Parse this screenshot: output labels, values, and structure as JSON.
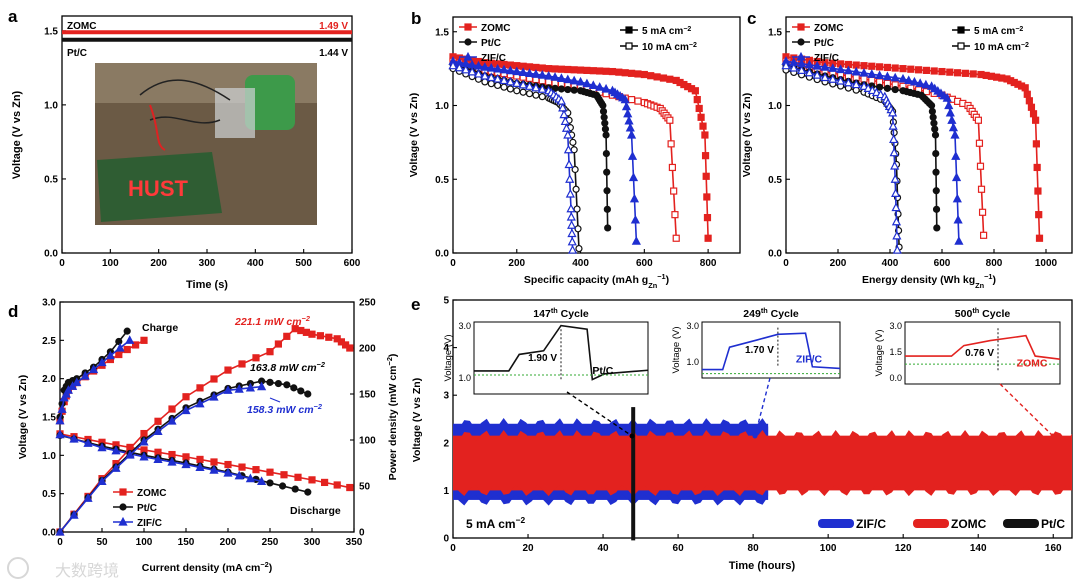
{
  "colors": {
    "zomc": "#e3221f",
    "ptc": "#111111",
    "zifc": "#1f2fd0",
    "grid": "#888888",
    "photo_bg": "#6b5a45",
    "board": "#2f5d33",
    "led": "#ff3a3a"
  },
  "watermark": "大数跨境",
  "panels": {
    "a": "a",
    "b": "b",
    "c": "c",
    "d": "d",
    "e": "e"
  },
  "chart_data": [
    {
      "panel": "a",
      "type": "line",
      "xlabel": "Time (s)",
      "ylabel": "Voltage (V vs Zn)",
      "xlim": [
        0,
        600
      ],
      "ylim": [
        0,
        1.6
      ],
      "xticks": [
        "0",
        "100",
        "200",
        "300",
        "400",
        "500",
        "600"
      ],
      "yticks": [
        "0.0",
        "0.5",
        "1.0",
        "1.5"
      ],
      "series": [
        {
          "name": "ZOMC",
          "label": "1.49 V",
          "value": 1.49
        },
        {
          "name": "Pt/C",
          "label": "1.44 V",
          "value": 1.44
        }
      ],
      "photo_text": "HUST"
    },
    {
      "panel": "b",
      "type": "line",
      "xlabel": "Specific capacity (mAh g",
      "xlabel_sub": "Zn",
      "xlabel_sup": "−1",
      "xlabel_end": ")",
      "ylabel": "Voltage (V vs Zn)",
      "xlim": [
        0,
        900
      ],
      "ylim": [
        0,
        1.6
      ],
      "xticks": [
        "0",
        "200",
        "400",
        "600",
        "800"
      ],
      "yticks": [
        "0.0",
        "0.5",
        "1.0",
        "1.5"
      ],
      "legend": [
        "ZOMC",
        "Pt/C",
        "ZIF/C"
      ],
      "rate_legend": [
        "5 mA cm",
        "10 mA cm"
      ],
      "rate_sup": "−2",
      "series": [
        {
          "name": "ZOMC",
          "rate": "5",
          "x": [
            0,
            100,
            200,
            300,
            400,
            500,
            600,
            700,
            760,
            790,
            800
          ],
          "y": [
            1.33,
            1.29,
            1.27,
            1.25,
            1.24,
            1.23,
            1.21,
            1.17,
            1.1,
            0.8,
            0.1
          ]
        },
        {
          "name": "ZOMC",
          "rate": "10",
          "x": [
            0,
            100,
            200,
            300,
            400,
            500,
            600,
            650,
            680,
            700
          ],
          "y": [
            1.3,
            1.24,
            1.2,
            1.16,
            1.12,
            1.07,
            1.02,
            0.98,
            0.9,
            0.1
          ]
        },
        {
          "name": "Pt/C",
          "rate": "5",
          "x": [
            0,
            100,
            200,
            300,
            400,
            450,
            470,
            480,
            485
          ],
          "y": [
            1.28,
            1.2,
            1.15,
            1.12,
            1.1,
            1.07,
            1.0,
            0.8,
            0.17
          ]
        },
        {
          "name": "Pt/C",
          "rate": "10",
          "x": [
            0,
            100,
            200,
            300,
            330,
            360,
            380,
            395
          ],
          "y": [
            1.25,
            1.16,
            1.1,
            1.05,
            1.02,
            0.95,
            0.7,
            0.03
          ]
        },
        {
          "name": "ZIF/C",
          "rate": "5",
          "x": [
            0,
            100,
            200,
            300,
            400,
            500,
            540,
            560,
            575
          ],
          "y": [
            1.3,
            1.26,
            1.23,
            1.2,
            1.16,
            1.1,
            1.04,
            0.8,
            0.08
          ]
        },
        {
          "name": "ZIF/C",
          "rate": "10",
          "x": [
            0,
            100,
            200,
            300,
            340,
            360,
            370,
            375
          ],
          "y": [
            1.27,
            1.2,
            1.15,
            1.1,
            1.03,
            0.8,
            0.3,
            0.02
          ]
        }
      ]
    },
    {
      "panel": "c",
      "type": "line",
      "xlabel": "Energy density (Wh kg",
      "xlabel_sub": "Zn",
      "xlabel_sup": "−1",
      "xlabel_end": ")",
      "ylabel": "Voltage (V vs Zn)",
      "xlim": [
        0,
        1100
      ],
      "ylim": [
        0,
        1.6
      ],
      "xticks": [
        "0",
        "200",
        "400",
        "600",
        "800",
        "1000"
      ],
      "yticks": [
        "0.0",
        "0.5",
        "1.0",
        "1.5"
      ],
      "legend": [
        "ZOMC",
        "Pt/C",
        "ZIF/C"
      ],
      "rate_legend": [
        "5 mA cm",
        "10 mA cm"
      ],
      "rate_sup": "−2",
      "series": [
        {
          "name": "ZOMC",
          "rate": "5",
          "x": [
            0,
            150,
            300,
            450,
            600,
            750,
            850,
            920,
            960,
            975
          ],
          "y": [
            1.33,
            1.29,
            1.27,
            1.25,
            1.23,
            1.21,
            1.18,
            1.12,
            0.9,
            0.1
          ]
        },
        {
          "name": "ZOMC",
          "rate": "10",
          "x": [
            0,
            150,
            300,
            450,
            600,
            700,
            740,
            760
          ],
          "y": [
            1.3,
            1.23,
            1.18,
            1.13,
            1.07,
            1.0,
            0.9,
            0.12
          ]
        },
        {
          "name": "Pt/C",
          "rate": "5",
          "x": [
            0,
            150,
            300,
            450,
            520,
            560,
            575,
            580
          ],
          "y": [
            1.27,
            1.2,
            1.14,
            1.1,
            1.07,
            1.0,
            0.8,
            0.17
          ]
        },
        {
          "name": "Pt/C",
          "rate": "10",
          "x": [
            0,
            150,
            300,
            380,
            410,
            425,
            435
          ],
          "y": [
            1.24,
            1.16,
            1.09,
            1.03,
            0.96,
            0.6,
            0.04
          ]
        },
        {
          "name": "ZIF/C",
          "rate": "5",
          "x": [
            0,
            150,
            300,
            450,
            560,
            620,
            650,
            665
          ],
          "y": [
            1.3,
            1.26,
            1.22,
            1.18,
            1.13,
            1.05,
            0.8,
            0.08
          ]
        },
        {
          "name": "ZIF/C",
          "rate": "10",
          "x": [
            0,
            150,
            300,
            380,
            410,
            420,
            428
          ],
          "y": [
            1.27,
            1.19,
            1.13,
            1.06,
            0.95,
            0.5,
            0.02
          ]
        }
      ]
    },
    {
      "panel": "d",
      "type": "line",
      "xlabel": "Current density (mA cm",
      "xlabel_sup": "−2",
      "xlabel_end": ")",
      "ylabel": "Voltage (V vs Zn)",
      "y2label": "Power density (mW cm",
      "y2label_sup": "−2",
      "y2label_end": ")",
      "xlim": [
        0,
        350
      ],
      "ylim": [
        0,
        3.0
      ],
      "y2lim": [
        0,
        250
      ],
      "xticks": [
        "0",
        "50",
        "100",
        "150",
        "200",
        "250",
        "300",
        "350"
      ],
      "yticks": [
        "0.0",
        "0.5",
        "1.0",
        "1.5",
        "2.0",
        "2.5",
        "3.0"
      ],
      "y2ticks": [
        "0",
        "50",
        "100",
        "150",
        "200",
        "250"
      ],
      "legend": [
        "ZOMC",
        "Pt/C",
        "ZIF/C"
      ],
      "labels": {
        "charge": "Charge",
        "discharge": "Discharge",
        "zomc_peak": "221.1 mW cm",
        "ptc_peak": "163.8 mW cm",
        "zifc_peak": "158.3 mW cm",
        "peak_sup": "−2"
      },
      "series": [
        {
          "name": "ZOMC",
          "kind": "charge",
          "x": [
            0,
            5,
            10,
            20,
            40,
            60,
            80,
            100
          ],
          "y": [
            1.45,
            1.7,
            1.85,
            1.95,
            2.1,
            2.25,
            2.38,
            2.5
          ]
        },
        {
          "name": "Pt/C",
          "kind": "charge",
          "x": [
            0,
            5,
            10,
            20,
            40,
            60,
            80
          ],
          "y": [
            1.5,
            1.85,
            1.95,
            2.0,
            2.15,
            2.35,
            2.62
          ]
        },
        {
          "name": "ZIF/C",
          "kind": "charge",
          "x": [
            0,
            5,
            10,
            20,
            40,
            60,
            83
          ],
          "y": [
            1.45,
            1.75,
            1.85,
            1.95,
            2.12,
            2.3,
            2.5
          ]
        },
        {
          "name": "ZOMC",
          "kind": "discharge",
          "x": [
            0,
            50,
            100,
            150,
            200,
            250,
            300,
            345
          ],
          "y": [
            1.28,
            1.17,
            1.07,
            0.98,
            0.88,
            0.78,
            0.68,
            0.58
          ]
        },
        {
          "name": "Pt/C",
          "kind": "discharge",
          "x": [
            0,
            50,
            100,
            150,
            200,
            250,
            295
          ],
          "y": [
            1.26,
            1.12,
            1.0,
            0.9,
            0.78,
            0.64,
            0.52
          ]
        },
        {
          "name": "ZIF/C",
          "kind": "discharge",
          "x": [
            0,
            50,
            100,
            150,
            200,
            240
          ],
          "y": [
            1.27,
            1.1,
            0.98,
            0.88,
            0.77,
            0.66
          ]
        },
        {
          "name": "ZOMC",
          "kind": "power",
          "x": [
            0,
            50,
            100,
            150,
            200,
            250,
            280,
            300,
            330,
            345
          ],
          "y": [
            0,
            58,
            107,
            147,
            176,
            196,
            221,
            215,
            210,
            200
          ]
        },
        {
          "name": "Pt/C",
          "kind": "power",
          "x": [
            0,
            50,
            100,
            150,
            200,
            240,
            270,
            295
          ],
          "y": [
            0,
            56,
            100,
            135,
            156,
            164,
            160,
            150
          ]
        },
        {
          "name": "ZIF/C",
          "kind": "power",
          "x": [
            0,
            50,
            100,
            150,
            200,
            240
          ],
          "y": [
            0,
            55,
            98,
            132,
            154,
            158
          ]
        }
      ]
    },
    {
      "panel": "e",
      "type": "area",
      "xlabel": "Time (hours)",
      "ylabel": "Voltage (V vs Zn)",
      "xlim": [
        0,
        165
      ],
      "ylim": [
        0,
        5
      ],
      "xticks": [
        "0",
        "20",
        "40",
        "60",
        "80",
        "100",
        "120",
        "140",
        "160"
      ],
      "yticks": [
        "0",
        "1",
        "2",
        "3",
        "4",
        "5"
      ],
      "rate_label": "5 mA cm",
      "rate_sup": "−2",
      "legend": [
        "ZIF/C",
        "ZOMC",
        "Pt/C"
      ],
      "bands": [
        {
          "name": "Pt/C",
          "x_end": 48,
          "top": 2.3,
          "bottom": 1.0
        },
        {
          "name": "ZIF/C",
          "x_end": 84,
          "top": 2.4,
          "bottom": 0.8
        },
        {
          "name": "ZOMC",
          "x_end": 165,
          "top": 2.15,
          "bottom": 1.0
        }
      ],
      "insets": [
        {
          "name": "Pt/C",
          "cycle": "147",
          "cycle_sup": "th",
          "title_end": " Cycle",
          "ylabel": "Voltage (V)",
          "yticks": [
            "1.0",
            "3.0"
          ],
          "gap": "1.90 V",
          "series_label": "Pt/C"
        },
        {
          "name": "ZIF/C",
          "cycle": "249",
          "cycle_sup": "th",
          "title_end": " Cycle",
          "ylabel": "Voltage (V)",
          "yticks": [
            "1.0",
            "3.0"
          ],
          "gap": "1.70 V",
          "series_label": "ZIF/C"
        },
        {
          "name": "ZOMC",
          "cycle": "500",
          "cycle_sup": "th",
          "title_end": " Cycle",
          "ylabel": "Voltage (V)",
          "yticks": [
            "0.0",
            "1.5",
            "3.0"
          ],
          "gap": "0.76 V",
          "series_label": "ZOMC"
        }
      ]
    }
  ]
}
